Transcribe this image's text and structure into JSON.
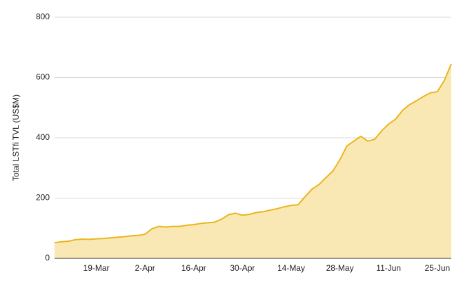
{
  "chart_data": {
    "type": "area",
    "y_label": "Total LSTfi TVL (US$M)",
    "categories": [
      null,
      null,
      null,
      null,
      null,
      null,
      "19-Mar",
      null,
      null,
      null,
      null,
      null,
      null,
      "2-Apr",
      null,
      null,
      null,
      null,
      null,
      null,
      "16-Apr",
      null,
      null,
      null,
      null,
      null,
      null,
      "30-Apr",
      null,
      null,
      null,
      null,
      null,
      null,
      "14-May",
      null,
      null,
      null,
      null,
      null,
      null,
      "28-May",
      null,
      null,
      null,
      null,
      null,
      null,
      "11-Jun",
      null,
      null,
      null,
      null,
      null,
      null,
      "25-Jun",
      null,
      null
    ],
    "values": [
      52,
      55,
      57,
      62,
      64,
      63,
      65,
      66,
      68,
      70,
      72,
      75,
      76,
      80,
      98,
      106,
      104,
      106,
      106,
      110,
      112,
      116,
      118,
      120,
      130,
      145,
      150,
      143,
      146,
      152,
      155,
      160,
      165,
      171,
      176,
      178,
      205,
      230,
      245,
      268,
      290,
      327,
      373,
      389,
      405,
      389,
      395,
      423,
      446,
      462,
      491,
      510,
      523,
      537,
      549,
      553,
      590,
      645
    ],
    "color": "#eab51c",
    "fill": "#fae8b4",
    "ylim": [
      0,
      800
    ],
    "yticks": [
      0,
      200,
      400,
      600,
      800
    ],
    "grid": true
  }
}
